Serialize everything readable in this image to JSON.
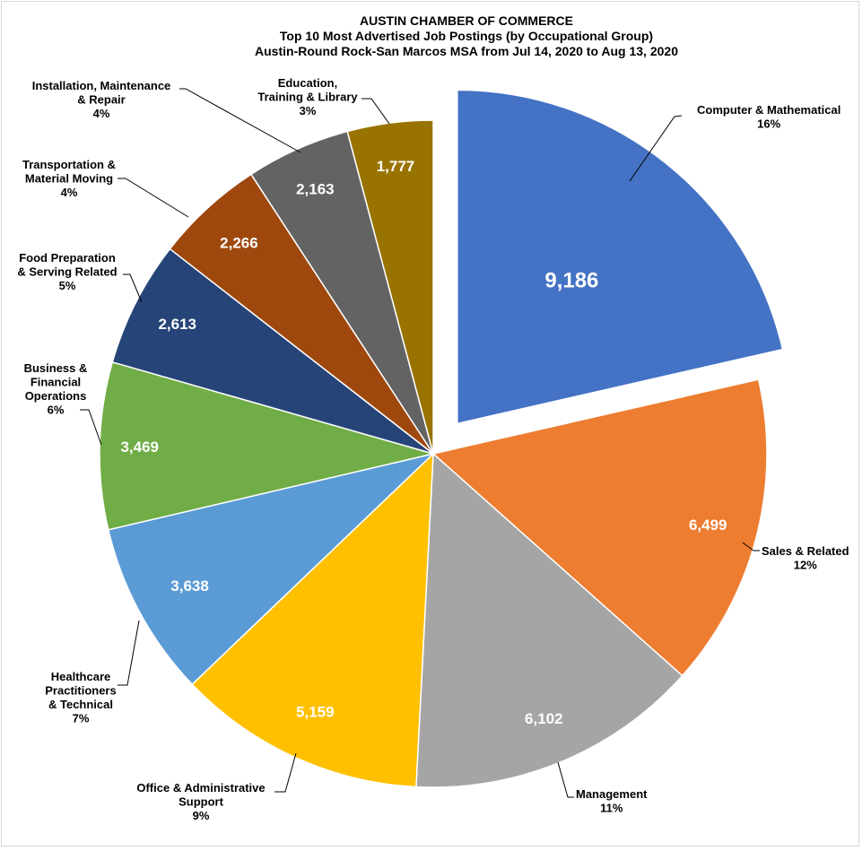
{
  "chart_data": {
    "type": "pie",
    "title": "AUSTIN CHAMBER OF COMMERCE",
    "subtitle": "Top 10 Most Advertised Job Postings (by Occupational Group)",
    "subtitle2": "Austin-Round Rock-San Marcos MSA from Jul 14, 2020 to Aug 13, 2020",
    "slices": [
      {
        "label": [
          "Computer & Mathematical"
        ],
        "value": 9186,
        "value_label": "9,186",
        "percent": "16%",
        "color": "#4472C4",
        "exploded": true
      },
      {
        "label": [
          "Sales & Related"
        ],
        "value": 6499,
        "value_label": "6,499",
        "percent": "12%",
        "color": "#ED7D31"
      },
      {
        "label": [
          "Management"
        ],
        "value": 6102,
        "value_label": "6,102",
        "percent": "11%",
        "color": "#A5A5A5"
      },
      {
        "label": [
          "Office & Administrative",
          "Support"
        ],
        "value": 5159,
        "value_label": "5,159",
        "percent": "9%",
        "color": "#FFC000"
      },
      {
        "label": [
          "Healthcare",
          "Practitioners",
          "& Technical"
        ],
        "value": 3638,
        "value_label": "3,638",
        "percent": "7%",
        "color": "#5B9BD5"
      },
      {
        "label": [
          "Business &",
          "Financial",
          "Operations"
        ],
        "value": 3469,
        "value_label": "3,469",
        "percent": "6%",
        "color": "#70AD47"
      },
      {
        "label": [
          "Food Preparation",
          "& Serving Related"
        ],
        "value": 2613,
        "value_label": "2,613",
        "percent": "5%",
        "color": "#264478"
      },
      {
        "label": [
          "Transportation &",
          "Material Moving"
        ],
        "value": 2266,
        "value_label": "2,266",
        "percent": "4%",
        "color": "#9E480E"
      },
      {
        "label": [
          "Installation, Maintenance",
          "& Repair"
        ],
        "value": 2163,
        "value_label": "2,163",
        "percent": "4%",
        "color": "#636363"
      },
      {
        "label": [
          "Education,",
          "Training & Library"
        ],
        "value": 1777,
        "value_label": "1,777",
        "percent": "3%",
        "color": "#997300"
      }
    ]
  }
}
